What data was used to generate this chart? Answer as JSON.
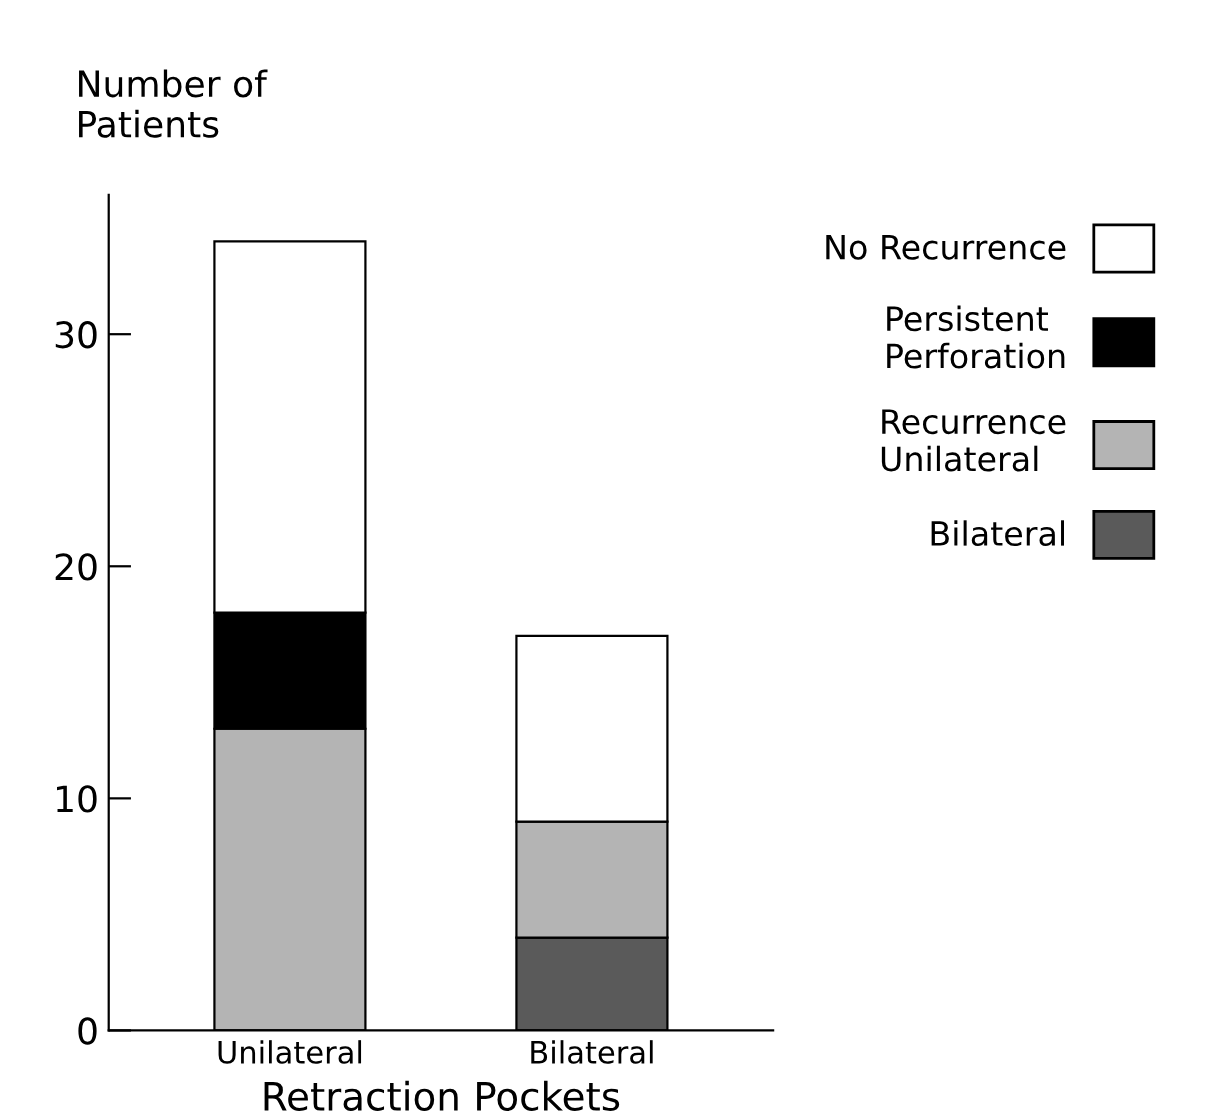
{
  "chart_data": {
    "type": "bar",
    "stacked": true,
    "xlabel": "Retraction Pockets",
    "ylabel": "Number of\nPatients",
    "categories": [
      "Unilateral",
      "Bilateral"
    ],
    "series": [
      {
        "name": "Bilateral",
        "color": "#5a5a5a",
        "values": [
          null,
          4
        ]
      },
      {
        "name": "Recurrence\nUnilateral",
        "color": "#b4b4b4",
        "values": [
          13,
          5
        ]
      },
      {
        "name": "Persistent\nPerforation",
        "color": "#000000",
        "values": [
          5,
          null
        ]
      },
      {
        "name": "No Recurrence",
        "color": "#ffffff",
        "values": [
          16,
          8
        ]
      }
    ],
    "ylim": [
      0,
      36
    ],
    "yticks": [
      0,
      10,
      20,
      30
    ],
    "grid": false,
    "legend": "top right"
  }
}
